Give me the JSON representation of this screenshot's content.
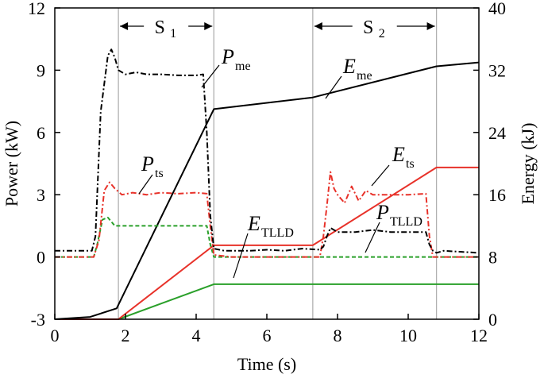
{
  "chart_data": {
    "type": "line",
    "xlabel": "Time (s)",
    "ylabel": "Power (kW)",
    "y2label": "Energy (kJ)",
    "xlim": [
      0,
      12
    ],
    "ylim": [
      -3,
      12
    ],
    "y2lim": [
      0,
      40
    ],
    "xticks": [
      0,
      2,
      4,
      6,
      8,
      10,
      12
    ],
    "yticks": [
      -3,
      0,
      3,
      6,
      9,
      12
    ],
    "y2ticks": [
      0,
      8,
      16,
      24,
      32,
      40
    ],
    "grid": false,
    "legend": "none",
    "regions": [
      {
        "name": "S",
        "sub": "1",
        "start": 1.8,
        "end": 4.5
      },
      {
        "name": "S",
        "sub": "2",
        "start": 7.3,
        "end": 10.8
      }
    ],
    "series": [
      {
        "name": "P_me",
        "label_main": "P",
        "label_sub": "me",
        "axis": "left",
        "color": "#000000",
        "style": "dashdot",
        "x": [
          0,
          1.05,
          1.15,
          1.3,
          1.5,
          1.6,
          1.7,
          1.8,
          2.0,
          2.3,
          2.6,
          3.0,
          3.5,
          4.0,
          4.2,
          4.3,
          4.4,
          4.5,
          4.8,
          5.5,
          6.0,
          6.5,
          7.0,
          7.5,
          7.6,
          7.7,
          7.8,
          8.0,
          8.5,
          9.0,
          9.5,
          10.0,
          10.5,
          10.6,
          10.7,
          10.8,
          11.0,
          12.0
        ],
        "y": [
          0.3,
          0.3,
          1.0,
          7.0,
          9.7,
          10.0,
          9.6,
          9.0,
          8.8,
          8.9,
          8.8,
          8.8,
          8.75,
          8.75,
          8.8,
          6.0,
          2.0,
          0.4,
          0.3,
          0.3,
          0.35,
          0.3,
          0.4,
          0.35,
          0.5,
          1.0,
          1.4,
          1.2,
          1.2,
          1.3,
          1.2,
          1.2,
          1.2,
          0.6,
          0.3,
          0.2,
          0.3,
          0.2
        ]
      },
      {
        "name": "P_ts",
        "label_main": "P",
        "label_sub": "ts",
        "axis": "left",
        "color": "#e8322a",
        "style": "dashdot",
        "x": [
          0,
          1.1,
          1.25,
          1.4,
          1.55,
          1.7,
          1.9,
          2.2,
          2.6,
          3.0,
          3.5,
          4.0,
          4.3,
          4.4,
          4.5,
          5.0,
          7.5,
          7.6,
          7.7,
          7.8,
          7.9,
          8.0,
          8.2,
          8.4,
          8.6,
          8.8,
          9.0,
          9.5,
          10.0,
          10.5,
          10.6,
          10.7,
          12.0
        ],
        "y": [
          0,
          0,
          0.8,
          3.2,
          3.6,
          3.3,
          3.0,
          3.1,
          3.0,
          3.1,
          3.05,
          3.1,
          3.05,
          1.5,
          0.1,
          0,
          0,
          1.0,
          2.5,
          4.1,
          3.3,
          3.0,
          2.6,
          3.4,
          2.7,
          3.2,
          3.0,
          3.0,
          3.0,
          3.05,
          1.0,
          0,
          0
        ]
      },
      {
        "name": "P_TLLD",
        "label_main": "P",
        "label_sub": "TLLD",
        "axis": "left",
        "color": "#2aa02a",
        "style": "dashed",
        "x": [
          0,
          1.1,
          1.2,
          1.35,
          1.5,
          1.7,
          2.0,
          3.0,
          4.0,
          4.3,
          4.4,
          4.5,
          12.0
        ],
        "y": [
          0,
          0,
          0.6,
          1.8,
          1.9,
          1.5,
          1.5,
          1.5,
          1.5,
          1.5,
          0.6,
          0,
          0
        ]
      },
      {
        "name": "E_me",
        "label_main": "E",
        "label_sub": "me",
        "axis": "right",
        "color": "#000000",
        "style": "solid",
        "x": [
          0,
          1.0,
          1.75,
          4.5,
          7.3,
          10.8,
          12.0
        ],
        "y": [
          0,
          0.3,
          1.4,
          27.0,
          28.5,
          32.5,
          33.0
        ]
      },
      {
        "name": "E_ts",
        "label_main": "E",
        "label_sub": "ts",
        "axis": "right",
        "color": "#e8322a",
        "style": "solid",
        "x": [
          0,
          1.0,
          1.8,
          4.5,
          7.3,
          10.8,
          12.0
        ],
        "y": [
          0,
          0,
          0,
          9.5,
          9.5,
          19.5,
          19.5
        ]
      },
      {
        "name": "E_TLLD",
        "label_main": "E",
        "label_sub": "TLLD",
        "axis": "right",
        "color": "#2aa02a",
        "style": "solid",
        "x": [
          0,
          1.0,
          1.8,
          4.5,
          12.0
        ],
        "y": [
          0,
          0,
          0,
          4.5,
          4.5
        ]
      }
    ]
  }
}
